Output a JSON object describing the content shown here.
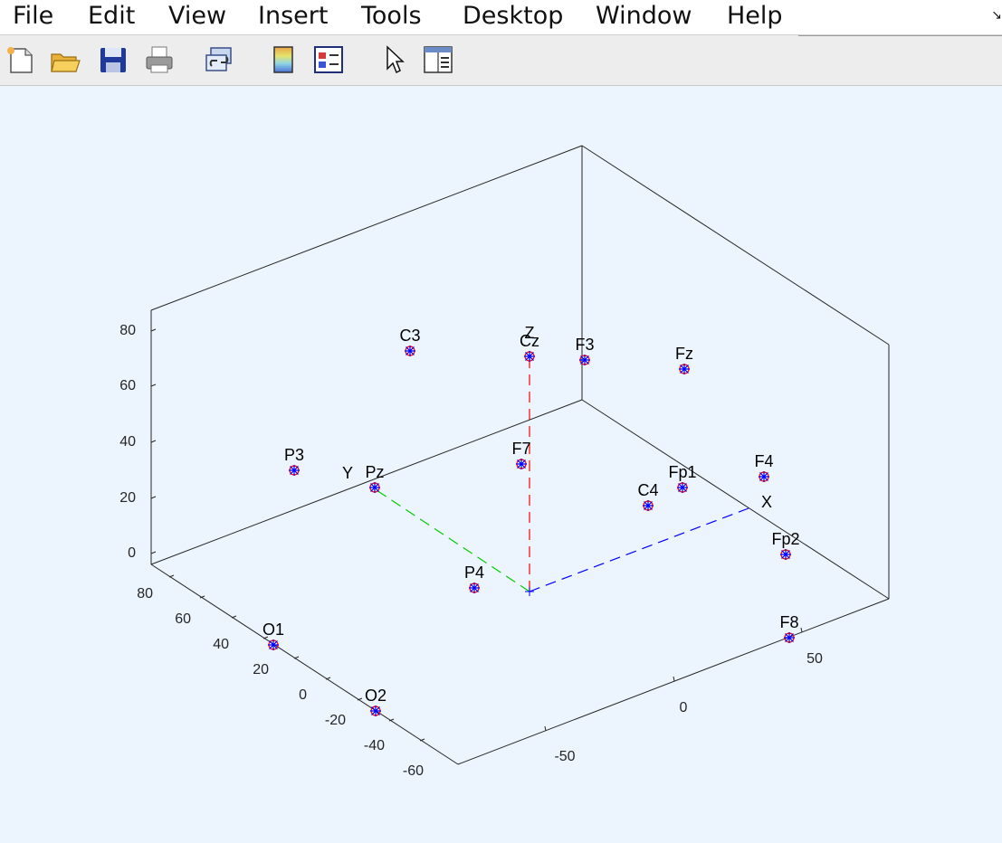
{
  "menu": {
    "items": [
      "File",
      "Edit",
      "View",
      "Insert",
      "Tools",
      "Desktop",
      "Window",
      "Help"
    ],
    "dock_glyph": "↘"
  },
  "toolbar": {
    "buttons": [
      "new-figure-icon",
      "open-file-icon",
      "save-icon",
      "print-icon",
      "link-plot-icon",
      "colorbar-icon",
      "legend-icon",
      "edit-plot-pointer-icon",
      "property-inspector-icon"
    ]
  },
  "chart_data": {
    "type": "scatter3d",
    "title": "",
    "marker_colors": [
      "#ff0000",
      "#0000ff"
    ],
    "zlim": [
      0,
      90
    ],
    "z_ticks": [
      0,
      20,
      40,
      60,
      80
    ],
    "y_ticks": [
      -60,
      -40,
      -20,
      0,
      20,
      40,
      60,
      80
    ],
    "x_ticks": [
      -50,
      0,
      50
    ],
    "axis_lines": [
      {
        "name": "X",
        "color": "#0000ff"
      },
      {
        "name": "Y",
        "color": "#00cc00"
      },
      {
        "name": "Z",
        "color": "#ff0000"
      }
    ],
    "electrodes": [
      {
        "label": "C3"
      },
      {
        "label": "Cz"
      },
      {
        "label": "F3"
      },
      {
        "label": "Fz"
      },
      {
        "label": "P3"
      },
      {
        "label": "Pz"
      },
      {
        "label": "F7"
      },
      {
        "label": "Fp1"
      },
      {
        "label": "F4"
      },
      {
        "label": "C4"
      },
      {
        "label": "Fp2"
      },
      {
        "label": "P4"
      },
      {
        "label": "O1"
      },
      {
        "label": "F8"
      },
      {
        "label": "O2"
      }
    ]
  }
}
